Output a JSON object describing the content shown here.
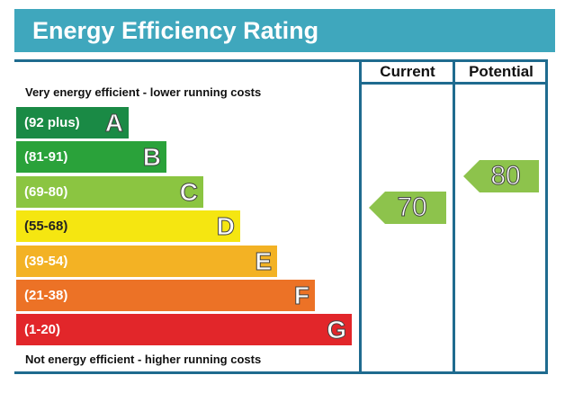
{
  "title": "Energy Efficiency Rating",
  "columns": {
    "current": "Current",
    "potential": "Potential"
  },
  "captions": {
    "top": "Very energy efficient - lower running costs",
    "bottom": "Not energy efficient - higher running costs"
  },
  "colors": {
    "title_bar": "#3fa7bd",
    "frame": "#1f6b8f",
    "pointer": "#8dc34c"
  },
  "chart_data": {
    "type": "bar",
    "title": "Energy Efficiency Rating",
    "bands": [
      {
        "letter": "A",
        "range": "(92 plus)",
        "color": "#1a8a45"
      },
      {
        "letter": "B",
        "range": "(81-91)",
        "color": "#2aa23a"
      },
      {
        "letter": "C",
        "range": "(69-80)",
        "color": "#8bc541"
      },
      {
        "letter": "D",
        "range": "(55-68)",
        "color": "#f5e611"
      },
      {
        "letter": "E",
        "range": "(39-54)",
        "color": "#f3b224"
      },
      {
        "letter": "F",
        "range": "(21-38)",
        "color": "#ec7226"
      },
      {
        "letter": "G",
        "range": "(1-20)",
        "color": "#e2262a"
      }
    ],
    "series": [
      {
        "name": "Current",
        "values": [
          70
        ]
      },
      {
        "name": "Potential",
        "values": [
          80
        ]
      }
    ]
  }
}
